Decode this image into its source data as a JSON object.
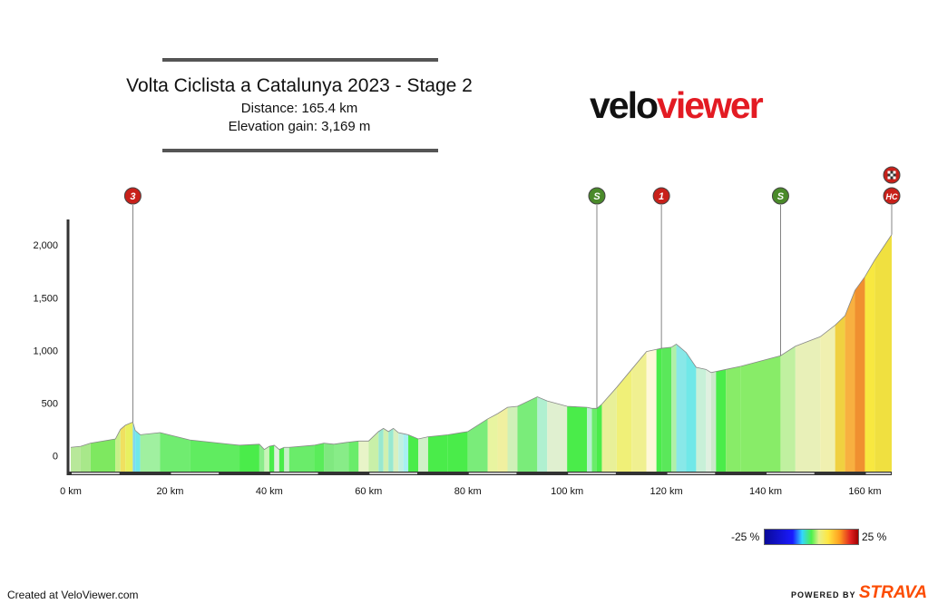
{
  "header": {
    "title": "Volta Ciclista a Catalunya 2023 - Stage 2",
    "distance": "Distance: 165.4 km",
    "elevation_gain": "Elevation gain: 3,169 m"
  },
  "brand": {
    "part1": "velo",
    "part2": "viewer"
  },
  "legend": {
    "min": "-25 %",
    "max": "25 %"
  },
  "footer": {
    "created": "Created at VeloViewer.com",
    "powered_by": "POWERED BY",
    "strava": "STRAVA"
  },
  "colors": {
    "brand_red": "#e31b23",
    "sprint_green": "#4a8a2a",
    "climb_red": "#c8201a",
    "axis": "#333333"
  },
  "chart_data": {
    "type": "area",
    "xlabel": "",
    "ylabel": "",
    "xlim": [
      0,
      165.4
    ],
    "ylim": [
      -150,
      2200
    ],
    "x_ticks": [
      0,
      20,
      40,
      60,
      80,
      100,
      120,
      140,
      160
    ],
    "x_tick_labels": [
      "0 km",
      "20 km",
      "40 km",
      "60 km",
      "80 km",
      "100 km",
      "120 km",
      "140 km",
      "160 km"
    ],
    "y_ticks": [
      0,
      500,
      1000,
      1500,
      2000
    ],
    "y_tick_labels": [
      "0",
      "500",
      "1,000",
      "1,500",
      "2,000"
    ],
    "profile": {
      "x": [
        0,
        2,
        4,
        9,
        10,
        11,
        12.5,
        13,
        14,
        18,
        24,
        34,
        38,
        39,
        40,
        41,
        42,
        43,
        44,
        49,
        51,
        53,
        56,
        58,
        60,
        62,
        63,
        64,
        65,
        66,
        67,
        68,
        70,
        72,
        76,
        80,
        84,
        86,
        88,
        90,
        94,
        96,
        100,
        104,
        105,
        106,
        107,
        110,
        113,
        116,
        118,
        119,
        121,
        122,
        124,
        126,
        128,
        129,
        130,
        132,
        135,
        143,
        146,
        151,
        154,
        156,
        158,
        160,
        162,
        165.4
      ],
      "y": [
        80,
        90,
        120,
        160,
        250,
        290,
        320,
        240,
        200,
        220,
        150,
        100,
        110,
        60,
        90,
        100,
        60,
        80,
        80,
        100,
        120,
        110,
        130,
        140,
        140,
        230,
        260,
        230,
        260,
        220,
        210,
        200,
        160,
        180,
        200,
        230,
        350,
        400,
        460,
        470,
        560,
        520,
        470,
        460,
        450,
        450,
        490,
        650,
        820,
        990,
        1010,
        1020,
        1030,
        1060,
        980,
        840,
        820,
        790,
        800,
        820,
        850,
        950,
        1040,
        1130,
        1240,
        1330,
        1570,
        1700,
        1860,
        2100
      ],
      "segment_colors": [
        "#b8e89a",
        "#a8e88a",
        "#7ee860",
        "#c8f088",
        "#f0e060",
        "#e8f060",
        "#80d8f0",
        "#70e8e8",
        "#a0f0a0",
        "#70ec70",
        "#60ec60",
        "#4aec4a",
        "#8aec8a",
        "#c8f4b8",
        "#4aec4a",
        "#dff0dd",
        "#4aec4a",
        "#c8f0c8",
        "#6aec6a",
        "#5aec5a",
        "#80e880",
        "#88ec88",
        "#6aec6a",
        "#e8f4c8",
        "#c8f0a8",
        "#98e8d0",
        "#d0f0b0",
        "#98e8d0",
        "#d8f0c0",
        "#c0f0e0",
        "#a8f0f0",
        "#4aec4a",
        "#d0f0c8",
        "#4aec4a",
        "#4aec4a",
        "#7aec7a",
        "#e8f4a0",
        "#f0f0a0",
        "#d0f0b8",
        "#7aec7a",
        "#b0f0d0",
        "#e0f0d0",
        "#4aec4a",
        "#b8f0d0",
        "#6aec6a",
        "#4aec4a",
        "#e8f098",
        "#f0f078",
        "#f0f090",
        "#fff8d8",
        "#4aec4a",
        "#5ae85a",
        "#b0f0a8",
        "#88e8e8",
        "#70e8e8",
        "#c8f0d8",
        "#e0f0e0",
        "#cce8cc",
        "#4aec4a",
        "#88ec68",
        "#88ec68",
        "#c0f0a0",
        "#e8f0b8",
        "#f0f0b0",
        "#f0d040",
        "#f8b040",
        "#f09030",
        "#f8e840",
        "#f0e040"
      ]
    },
    "markers": [
      {
        "label": "3",
        "km": 12.5,
        "kind": "climb"
      },
      {
        "label": "S",
        "km": 106,
        "kind": "sprint"
      },
      {
        "label": "1",
        "km": 119,
        "kind": "climb"
      },
      {
        "label": "S",
        "km": 143,
        "kind": "sprint"
      },
      {
        "label": "HC",
        "km": 165.4,
        "kind": "climb"
      }
    ],
    "finish_icon": "checkered-flag-icon"
  }
}
